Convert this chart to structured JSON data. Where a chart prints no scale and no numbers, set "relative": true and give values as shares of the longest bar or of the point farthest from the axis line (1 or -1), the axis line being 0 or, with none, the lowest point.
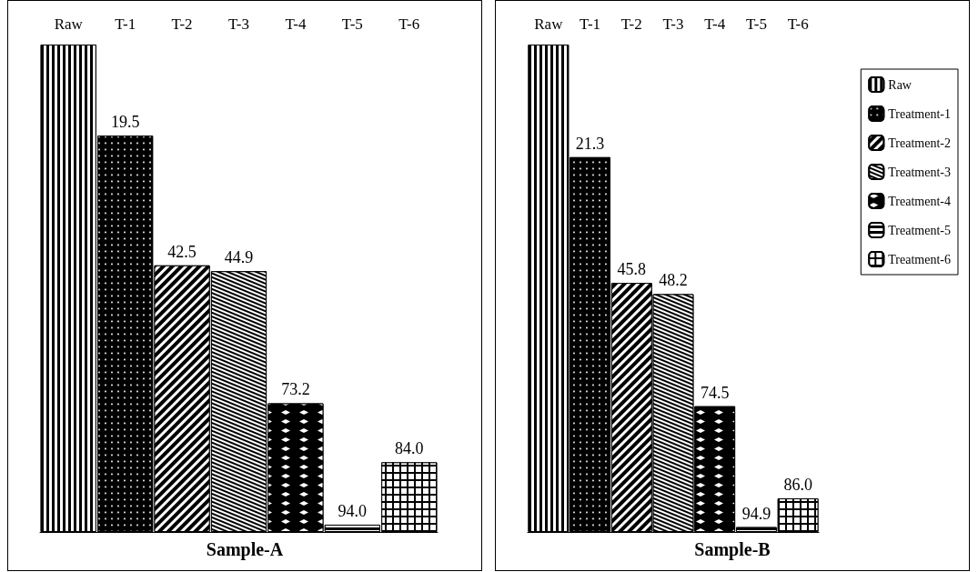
{
  "chart_data": [
    {
      "type": "bar",
      "title": "Sample-A",
      "relative": true,
      "categories": [
        "Raw",
        "T-1",
        "T-2",
        "T-3",
        "T-4",
        "T-5",
        "T-6"
      ],
      "values": [
        1,
        0.813,
        0.547,
        0.535,
        0.264,
        0.015,
        0.143
      ],
      "colors": [
        "#000000",
        "#000000",
        "#000000",
        "#000000",
        "#000000",
        "#000000",
        "#000000"
      ],
      "annotations": [
        "19.5",
        "42.5",
        "44.9",
        "73.2",
        "94.0",
        "84.0"
      ]
    },
    {
      "type": "bar",
      "title": "Sample-B",
      "relative": true,
      "legend": "top right",
      "categories": [
        "Raw",
        "T-1",
        "T-2",
        "T-3",
        "T-4",
        "T-5",
        "T-6"
      ],
      "series": [
        {
          "name": "Raw",
          "color": "#000000",
          "values": [
            1,
            null,
            null,
            null,
            null,
            null,
            null
          ]
        },
        {
          "name": "Treatment-1",
          "color": "#000000",
          "values": [
            null,
            0.769,
            null,
            null,
            null,
            null,
            null
          ]
        },
        {
          "name": "Treatment-2",
          "color": "#000000",
          "values": [
            null,
            null,
            0.511,
            null,
            null,
            null,
            null
          ]
        },
        {
          "name": "Treatment-3",
          "color": "#000000",
          "values": [
            null,
            null,
            null,
            0.488,
            null,
            null,
            null
          ]
        },
        {
          "name": "Treatment-4",
          "color": "#000000",
          "values": [
            null,
            null,
            null,
            null,
            0.258,
            null,
            null
          ]
        },
        {
          "name": "Treatment-5",
          "color": "#000000",
          "values": [
            null,
            null,
            null,
            null,
            null,
            0.01,
            null
          ]
        },
        {
          "name": "Treatment-6",
          "color": "#000000",
          "values": [
            null,
            null,
            null,
            null,
            null,
            null,
            0.069
          ]
        }
      ],
      "annotations": [
        "21.3",
        "45.8",
        "48.2",
        "74.5",
        "94.9",
        "86.0"
      ]
    }
  ]
}
